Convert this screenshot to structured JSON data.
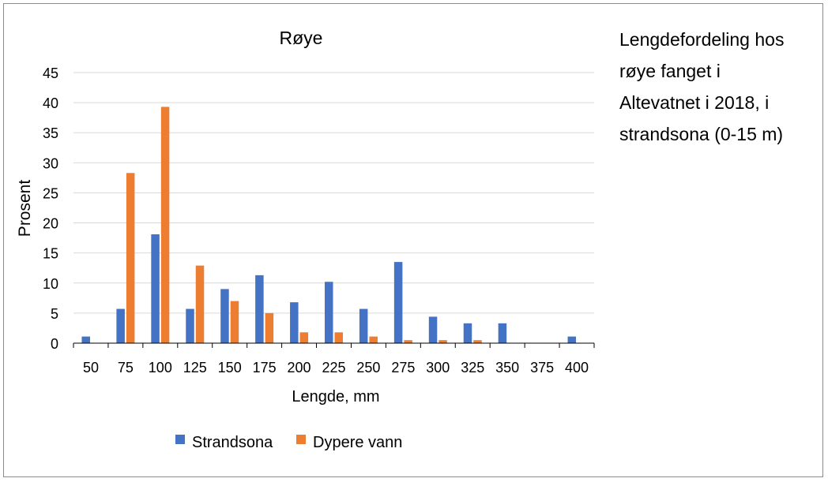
{
  "caption_lines": [
    "Lengdefordeling hos",
    "røye fanget i",
    "Altevatnet i 2018, i",
    "strandsona (0-15 m)"
  ],
  "colors": {
    "strandsona": "#4472C4",
    "dypere_vann": "#ED7D31",
    "grid": "#d9d9d9",
    "axis": "#000000"
  },
  "chart_data": {
    "type": "bar",
    "title": "Røye",
    "xlabel": "Lengde, mm",
    "ylabel": "Prosent",
    "ylim": [
      0,
      45
    ],
    "yticks": [
      0,
      5,
      10,
      15,
      20,
      25,
      30,
      35,
      40,
      45
    ],
    "grid": true,
    "legend_position": "bottom",
    "categories": [
      "50",
      "75",
      "100",
      "125",
      "150",
      "175",
      "200",
      "225",
      "250",
      "275",
      "300",
      "325",
      "350",
      "375",
      "400"
    ],
    "series": [
      {
        "name": "Strandsona",
        "color": "#4472C4",
        "values": [
          1.1,
          5.7,
          18.1,
          5.7,
          9.0,
          11.3,
          6.8,
          10.2,
          5.7,
          13.5,
          4.4,
          3.3,
          3.3,
          0,
          1.1
        ]
      },
      {
        "name": "Dypere vann",
        "color": "#ED7D31",
        "values": [
          0,
          28.3,
          39.3,
          12.9,
          7.0,
          5.0,
          1.8,
          1.8,
          1.1,
          0.5,
          0.5,
          0.5,
          0,
          0,
          0
        ]
      }
    ]
  }
}
